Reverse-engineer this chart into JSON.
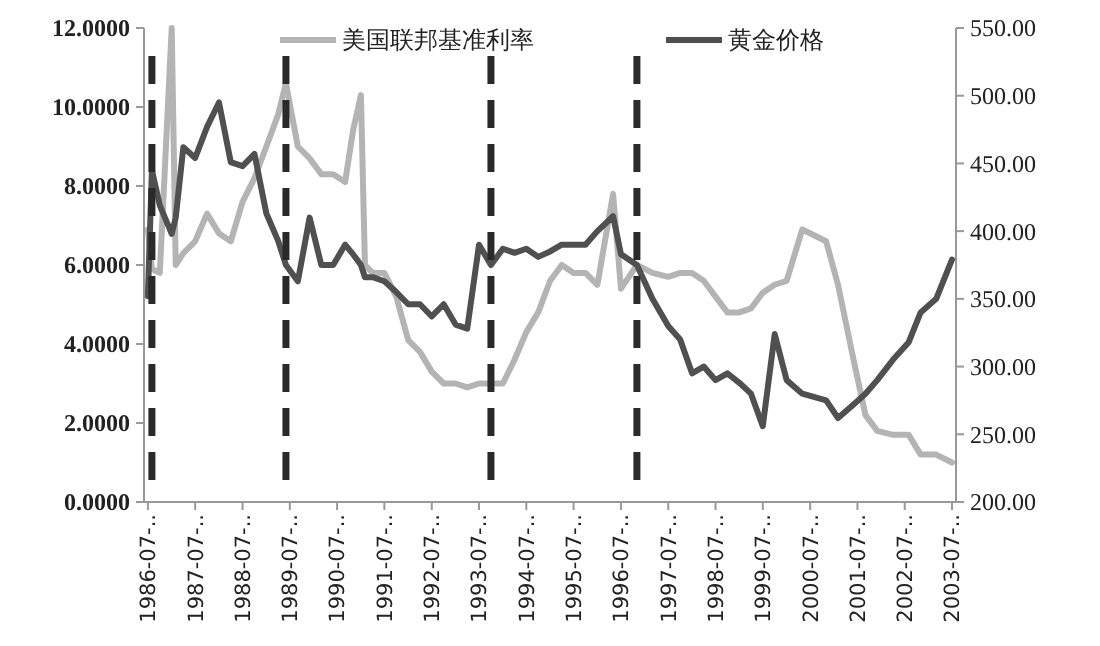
{
  "chart_data": {
    "type": "line",
    "x": [
      "1986-07",
      "1986-08",
      "1986-10",
      "1987-01",
      "1987-02",
      "1987-04",
      "1987-07",
      "1987-10",
      "1988-01",
      "1988-04",
      "1988-07",
      "1988-10",
      "1989-01",
      "1989-04",
      "1989-06",
      "1989-09",
      "1989-12",
      "1990-03",
      "1990-06",
      "1990-09",
      "1990-11",
      "1991-01",
      "1991-02",
      "1991-04",
      "1991-07",
      "1991-10",
      "1992-01",
      "1992-04",
      "1992-07",
      "1992-10",
      "1993-01",
      "1993-04",
      "1993-07",
      "1993-10",
      "1994-01",
      "1994-04",
      "1994-07",
      "1994-10",
      "1995-01",
      "1995-04",
      "1995-07",
      "1995-10",
      "1996-01",
      "1996-05",
      "1996-07",
      "1996-11",
      "1997-03",
      "1997-07",
      "1997-10",
      "1998-01",
      "1998-04",
      "1998-07",
      "1998-10",
      "1999-01",
      "1999-04",
      "1999-07",
      "1999-10",
      "2000-01",
      "2000-05",
      "2000-11",
      "2001-02",
      "2001-06",
      "2001-09",
      "2001-12",
      "2002-04",
      "2002-08",
      "2002-11",
      "2003-03",
      "2003-07"
    ],
    "series": [
      {
        "name": "美国联邦基准利率",
        "color": "#b4b4b4",
        "axis": "y",
        "values": [
          6.9,
          5.9,
          5.8,
          12.0,
          6.0,
          6.3,
          6.6,
          7.3,
          6.8,
          6.6,
          7.6,
          8.2,
          9.0,
          9.8,
          10.6,
          9.0,
          8.7,
          8.3,
          8.3,
          8.1,
          9.4,
          10.3,
          6.0,
          5.8,
          5.8,
          5.2,
          4.1,
          3.8,
          3.3,
          3.0,
          3.0,
          2.9,
          3.0,
          3.0,
          3.0,
          3.6,
          4.3,
          4.8,
          5.6,
          6.0,
          5.8,
          5.8,
          5.5,
          7.8,
          5.4,
          6.0,
          5.8,
          5.7,
          5.8,
          5.8,
          5.6,
          5.2,
          4.8,
          4.8,
          4.9,
          5.3,
          5.5,
          5.6,
          6.9,
          6.6,
          5.5,
          3.6,
          2.2,
          1.8,
          1.7,
          1.7,
          1.2,
          1.2,
          1.0
        ]
      },
      {
        "name": "黄金价格",
        "color": "#505050",
        "axis": "y2",
        "values": [
          352,
          445,
          419,
          398,
          410,
          462,
          454,
          477,
          495,
          451,
          448,
          457,
          413,
          393,
          375,
          363,
          410,
          375,
          375,
          390,
          383,
          375,
          366,
          366,
          363,
          355,
          346,
          346,
          337,
          346,
          331,
          328,
          390,
          375,
          387,
          384,
          387,
          381,
          385,
          390,
          390,
          390,
          400,
          411,
          383,
          375,
          350,
          330,
          320,
          295,
          300,
          290,
          295,
          288,
          280,
          256,
          324,
          290,
          280,
          275,
          262,
          272,
          280,
          290,
          305,
          318,
          340,
          350,
          379
        ]
      }
    ],
    "xlim": [
      "1986-06",
      "2003-08"
    ],
    "xticks": [
      {
        "value": "1986-07",
        "label": "1986-07-.."
      },
      {
        "value": "1987-07",
        "label": "1987-07-.."
      },
      {
        "value": "1988-07",
        "label": "1988-07-.."
      },
      {
        "value": "1989-07",
        "label": "1989-07-.."
      },
      {
        "value": "1990-07",
        "label": "1990-07-.."
      },
      {
        "value": "1991-07",
        "label": "1991-07-.."
      },
      {
        "value": "1992-07",
        "label": "1992-07-.."
      },
      {
        "value": "1993-07",
        "label": "1993-07-.."
      },
      {
        "value": "1994-07",
        "label": "1994-07-.."
      },
      {
        "value": "1995-07",
        "label": "1995-07-.."
      },
      {
        "value": "1996-07",
        "label": "1996-07-.."
      },
      {
        "value": "1997-07",
        "label": "1997-07-.."
      },
      {
        "value": "1998-07",
        "label": "1998-07-.."
      },
      {
        "value": "1999-07",
        "label": "1999-07-.."
      },
      {
        "value": "2000-07",
        "label": "2000-07-.."
      },
      {
        "value": "2001-07",
        "label": "2001-07-.."
      },
      {
        "value": "2002-07",
        "label": "2002-07-.."
      },
      {
        "value": "2003-07",
        "label": "2003-07-.."
      }
    ],
    "ylim": [
      0,
      12
    ],
    "yticks": [
      {
        "value": 0,
        "label": "0.0000"
      },
      {
        "value": 2,
        "label": "2.0000"
      },
      {
        "value": 4,
        "label": "4.0000"
      },
      {
        "value": 6,
        "label": "6.0000"
      },
      {
        "value": 8,
        "label": "8.0000"
      },
      {
        "value": 10,
        "label": "10.0000"
      },
      {
        "value": 12,
        "label": "12.0000"
      }
    ],
    "y2lim": [
      200,
      550
    ],
    "y2ticks": [
      {
        "value": 200,
        "label": "200.00"
      },
      {
        "value": 250,
        "label": "250.00"
      },
      {
        "value": 300,
        "label": "300.00"
      },
      {
        "value": 350,
        "label": "350.00"
      },
      {
        "value": 400,
        "label": "400.00"
      },
      {
        "value": 450,
        "label": "450.00"
      },
      {
        "value": 500,
        "label": "500.00"
      },
      {
        "value": 550,
        "label": "550.00"
      }
    ],
    "ref_lines": [
      {
        "axis": "x",
        "value": "1986-08",
        "color": "#2a2a2a",
        "line_style": "dashed"
      },
      {
        "axis": "x",
        "value": "1989-06",
        "color": "#2a2a2a",
        "line_style": "dashed"
      },
      {
        "axis": "x",
        "value": "1993-10",
        "color": "#2a2a2a",
        "line_style": "dashed"
      },
      {
        "axis": "x",
        "value": "1996-11",
        "color": "#2a2a2a",
        "line_style": "dashed"
      }
    ],
    "legend": "top",
    "grid": false,
    "marker": "none",
    "line_style": "solid"
  }
}
